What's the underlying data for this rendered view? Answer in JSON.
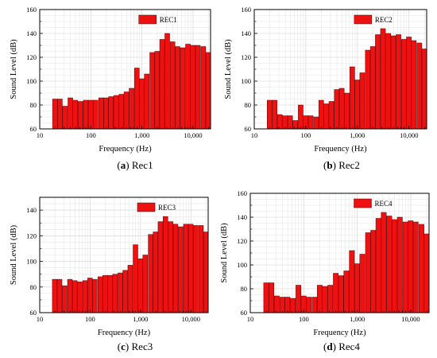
{
  "chart_data": [
    {
      "type": "bar",
      "caption_letter": "a",
      "caption_text": "Rec1",
      "xlabel": "Frequency (Hz)",
      "ylabel": "Sound Level (dB)",
      "xscale": "log",
      "xlim": [
        10,
        22000
      ],
      "ylim": [
        60,
        160
      ],
      "yticks": [
        60,
        80,
        100,
        120,
        140,
        160
      ],
      "xticks": [
        10,
        100,
        1000,
        10000
      ],
      "xtick_labels": [
        "10",
        "100",
        "1,000",
        "10,000"
      ],
      "grid": true,
      "legend_position": "top-center",
      "bar_color": "#ee1111",
      "series": [
        {
          "name": "REC1",
          "x": [
            20,
            25,
            31.5,
            40,
            50,
            63,
            80,
            100,
            125,
            160,
            200,
            250,
            315,
            400,
            500,
            630,
            800,
            1000,
            1250,
            1600,
            2000,
            2500,
            3150,
            4000,
            5000,
            6300,
            8000,
            10000,
            12500,
            16000,
            20000
          ],
          "values": [
            85,
            85,
            79,
            86,
            84,
            83,
            84,
            84,
            84,
            86,
            86,
            87,
            88,
            89,
            91,
            94,
            111,
            102,
            106,
            124,
            125,
            135,
            140,
            133,
            129,
            128,
            131,
            130,
            130,
            129,
            124
          ]
        }
      ]
    },
    {
      "type": "bar",
      "caption_letter": "b",
      "caption_text": "Rec2",
      "xlabel": "Frequency (Hz)",
      "ylabel": "Sound Level (dB)",
      "xscale": "log",
      "xlim": [
        10,
        22000
      ],
      "ylim": [
        60,
        160
      ],
      "yticks": [
        60,
        80,
        100,
        120,
        140,
        160
      ],
      "xticks": [
        10,
        100,
        1000,
        10000
      ],
      "xtick_labels": [
        "10",
        "100",
        "1,000",
        "10,000"
      ],
      "grid": true,
      "legend_position": "top-center",
      "bar_color": "#ee1111",
      "series": [
        {
          "name": "REC2",
          "x": [
            20,
            25,
            31.5,
            40,
            50,
            63,
            80,
            100,
            125,
            160,
            200,
            250,
            315,
            400,
            500,
            630,
            800,
            1000,
            1250,
            1600,
            2000,
            2500,
            3150,
            4000,
            5000,
            6300,
            8000,
            10000,
            12500,
            16000,
            20000
          ],
          "values": [
            84,
            84,
            72,
            71,
            71,
            67,
            80,
            71,
            71,
            70,
            84,
            81,
            83,
            93,
            94,
            90,
            112,
            101,
            107,
            126,
            129,
            139,
            144,
            140,
            138,
            139,
            135,
            137,
            134,
            132,
            127
          ]
        }
      ]
    },
    {
      "type": "bar",
      "caption_letter": "c",
      "caption_text": "Rec3",
      "xlabel": "Frequency (Hz)",
      "ylabel": "Sound Level (dB)",
      "xscale": "log",
      "xlim": [
        10,
        22000
      ],
      "ylim": [
        60,
        150
      ],
      "yticks": [
        60,
        80,
        100,
        120,
        140
      ],
      "xticks": [
        10,
        100,
        1000,
        10000
      ],
      "xtick_labels": [
        "10",
        "100",
        "1,000",
        "10,000"
      ],
      "grid": true,
      "legend_position": "top-center",
      "bar_color": "#ee1111",
      "series": [
        {
          "name": "REC3",
          "x": [
            20,
            25,
            31.5,
            40,
            50,
            63,
            80,
            100,
            125,
            160,
            200,
            250,
            315,
            400,
            500,
            630,
            800,
            1000,
            1250,
            1600,
            2000,
            2500,
            3150,
            4000,
            5000,
            6300,
            8000,
            10000,
            12500,
            16000,
            20000
          ],
          "values": [
            86,
            86,
            81,
            86,
            85,
            84,
            85,
            87,
            86,
            88,
            89,
            89,
            90,
            91,
            93,
            97,
            113,
            102,
            105,
            121,
            123,
            131,
            135,
            131,
            129,
            127,
            129,
            129,
            128,
            128,
            123
          ]
        }
      ]
    },
    {
      "type": "bar",
      "caption_letter": "d",
      "caption_text": "Rec4",
      "xlabel": "Frequency (Hz)",
      "ylabel": "Sound Level (dB)",
      "xscale": "log",
      "xlim": [
        10,
        22000
      ],
      "ylim": [
        60,
        160
      ],
      "yticks": [
        60,
        80,
        100,
        120,
        140,
        160
      ],
      "xticks": [
        10,
        100,
        1000,
        10000
      ],
      "xtick_labels": [
        "10",
        "100",
        "1,000",
        "10,000"
      ],
      "grid": true,
      "legend_position": "top-center",
      "bar_color": "#ee1111",
      "series": [
        {
          "name": "REC4",
          "x": [
            20,
            25,
            31.5,
            40,
            50,
            63,
            80,
            100,
            125,
            160,
            200,
            250,
            315,
            400,
            500,
            630,
            800,
            1000,
            1250,
            1600,
            2000,
            2500,
            3150,
            4000,
            5000,
            6300,
            8000,
            10000,
            12500,
            16000,
            20000
          ],
          "values": [
            85,
            85,
            74,
            73,
            73,
            72,
            83,
            74,
            73,
            73,
            83,
            82,
            83,
            93,
            91,
            95,
            112,
            101,
            109,
            127,
            129,
            139,
            144,
            141,
            138,
            140,
            136,
            137,
            136,
            134,
            126
          ]
        }
      ]
    }
  ]
}
